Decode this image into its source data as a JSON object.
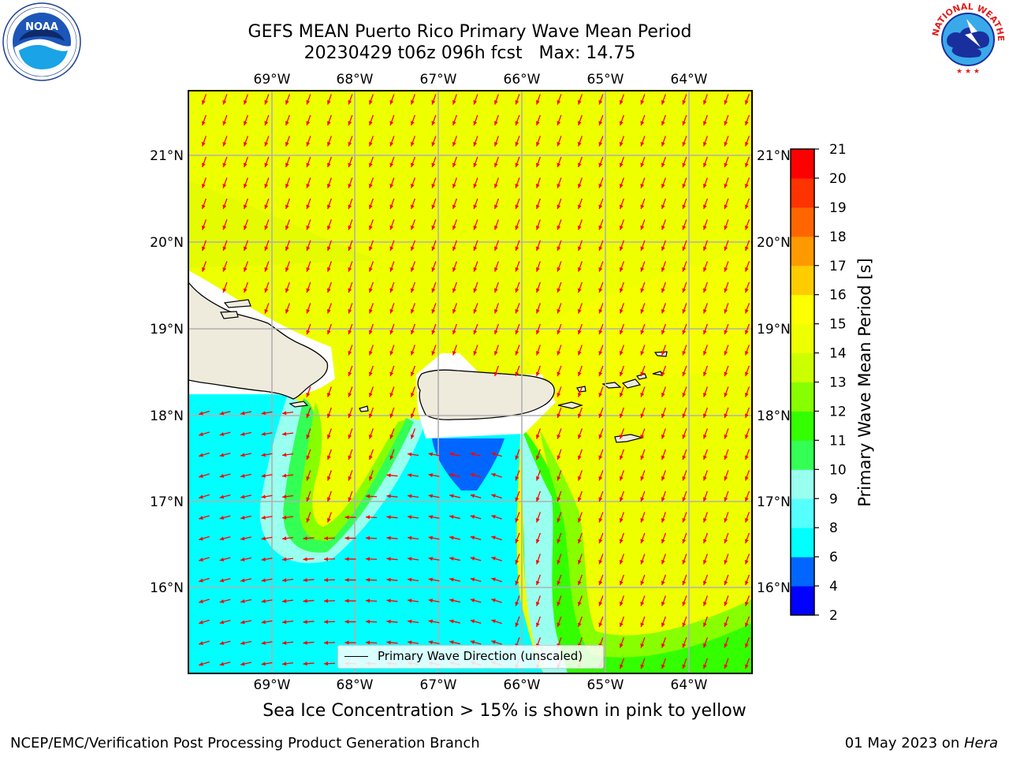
{
  "header": {
    "title": "GEFS MEAN Puerto Rico Primary Wave Mean Period",
    "subtitle": "20230429 t06z 096h fcst   Max: 14.75"
  },
  "logos": {
    "noaa_label": "NOAA",
    "noaa_ring_text": "NATIONAL OCEANIC AND ATMOSPHERIC ADMINISTRATION · U.S. DEPARTMENT OF COMMERCE",
    "nws_ring_text": "NATIONAL WEATHER SERVICE"
  },
  "map": {
    "lon_labels": [
      "69°W",
      "68°W",
      "67°W",
      "66°W",
      "65°W",
      "64°W"
    ],
    "lat_labels": [
      "21°N",
      "20°N",
      "19°N",
      "18°N",
      "17°N",
      "16°N"
    ],
    "legend_label": "Primary Wave Direction (unscaled)",
    "arrow_color": "#ff0000",
    "land_color": "#eeebdd"
  },
  "colorbar": {
    "label": "Primary Wave Mean Period [s]",
    "ticks": [
      "2",
      "4",
      "6",
      "8",
      "9",
      "10",
      "11",
      "12",
      "13",
      "14",
      "15",
      "16",
      "17",
      "18",
      "19",
      "20",
      "21"
    ],
    "colors": [
      "#0000ff",
      "#0066ff",
      "#00ffff",
      "#55ffff",
      "#99ffee",
      "#33ff55",
      "#33ff00",
      "#88ff00",
      "#ccff00",
      "#eeff00",
      "#ffff00",
      "#ffcc00",
      "#ff9900",
      "#ff6600",
      "#ff3300",
      "#ff0000"
    ]
  },
  "notes": {
    "sea_ice": "Sea Ice Concentration > 15% is shown in pink to yellow"
  },
  "footer": {
    "left": "NCEP/EMC/Verification Post Processing Product Generation Branch",
    "date": "01 May 2023 on ",
    "host": "Hera"
  }
}
